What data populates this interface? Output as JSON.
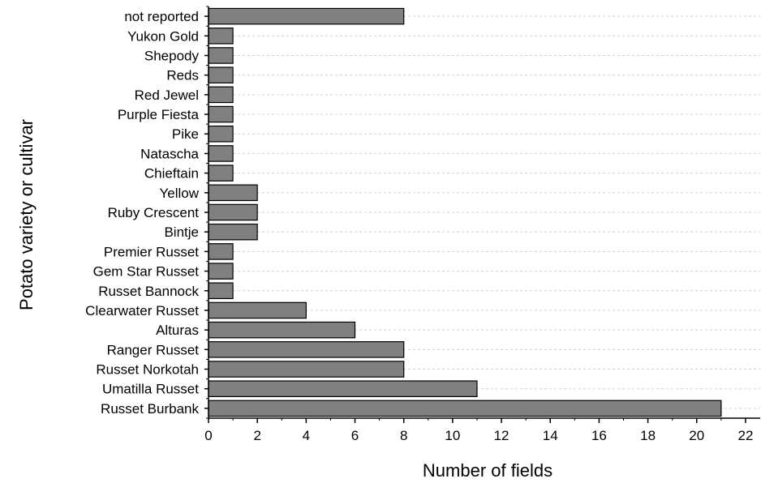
{
  "chart_data": {
    "type": "bar",
    "orientation": "horizontal",
    "title": "",
    "xlabel": "Number of fields",
    "ylabel": "Potato variety or cultivar",
    "categories": [
      "not reported",
      "Yukon Gold",
      "Shepody",
      "Reds",
      "Red Jewel",
      "Purple Fiesta",
      "Pike",
      "Natascha",
      "Chieftain",
      "Yellow",
      "Ruby Crescent",
      "Bintje",
      "Premier Russet",
      "Gem Star Russet",
      "Russet Bannock",
      "Clearwater Russet",
      "Alturas",
      "Ranger Russet",
      "Russet Norkotah",
      "Umatilla Russet",
      "Russet Burbank"
    ],
    "values": [
      8,
      1,
      1,
      1,
      1,
      1,
      1,
      1,
      1,
      2,
      2,
      2,
      1,
      1,
      1,
      4,
      6,
      8,
      8,
      11,
      21
    ],
    "xlim": [
      0,
      22.6
    ],
    "xticks": [
      0,
      2,
      4,
      6,
      8,
      10,
      12,
      14,
      16,
      18,
      20,
      22
    ],
    "grid": true,
    "legend": "none",
    "colors": {
      "bar_fill": "#808080",
      "bar_stroke": "#000000",
      "grid": "#d0d0d0"
    }
  }
}
